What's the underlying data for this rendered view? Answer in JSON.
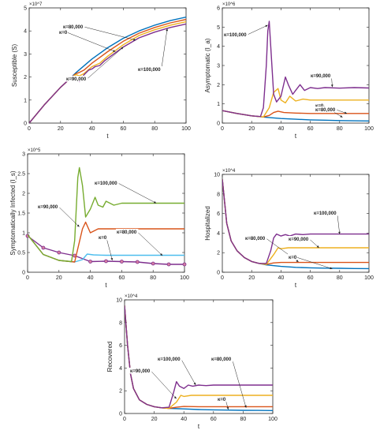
{
  "colors": {
    "kappa0": "#0072BD",
    "kappa80": "#D95319",
    "kappa90": "#EDB120",
    "kappa100": "#7E2F8E",
    "kappa100_c": "#77AC30",
    "k0_c": "#7E2F8E",
    "k80_c": "#4DBEEE",
    "k90_c": "#D95319"
  },
  "chart_data": [
    {
      "type": "line",
      "xlabel": "t",
      "ylabel": "Susceptible (S)",
      "exponent": "×10^7",
      "xlim": [
        0,
        100
      ],
      "ylim": [
        0,
        5
      ],
      "xticks": [
        0,
        20,
        40,
        60,
        80,
        100
      ],
      "yticks": [
        0,
        1,
        2,
        3,
        4,
        5
      ],
      "series": [
        {
          "name": "κ=0",
          "color": "#0072BD",
          "x": [
            0,
            10,
            20,
            30,
            40,
            50,
            60,
            70,
            80,
            90,
            100
          ],
          "y": [
            0,
            0.82,
            1.55,
            2.2,
            2.78,
            3.27,
            3.68,
            4.0,
            4.25,
            4.45,
            4.6
          ]
        },
        {
          "name": "κ=80,000",
          "color": "#D95319",
          "x": [
            0,
            10,
            20,
            28,
            30,
            32,
            35,
            40,
            50,
            60,
            70,
            80,
            90,
            100
          ],
          "y": [
            0,
            0.82,
            1.55,
            2.05,
            2.15,
            2.2,
            2.3,
            2.6,
            3.1,
            3.55,
            3.9,
            4.15,
            4.35,
            4.5
          ]
        },
        {
          "name": "κ=90,000",
          "color": "#EDB120",
          "x": [
            0,
            10,
            20,
            28,
            30,
            32,
            35,
            40,
            45,
            50,
            60,
            70,
            80,
            90,
            100
          ],
          "y": [
            0,
            0.82,
            1.55,
            2.05,
            2.1,
            2.05,
            2.15,
            2.45,
            2.6,
            2.9,
            3.4,
            3.8,
            4.05,
            4.25,
            4.4
          ]
        },
        {
          "name": "κ=100,000",
          "color": "#7E2F8E",
          "x": [
            0,
            10,
            20,
            28,
            30,
            31,
            32,
            33,
            35,
            38,
            40,
            42,
            45,
            48,
            50,
            60,
            70,
            80,
            90,
            100
          ],
          "y": [
            0,
            0.82,
            1.55,
            2.05,
            2.0,
            1.9,
            1.8,
            1.85,
            2.1,
            2.3,
            2.35,
            2.45,
            2.5,
            2.7,
            2.8,
            3.3,
            3.7,
            3.95,
            4.15,
            4.3
          ]
        }
      ],
      "annotations": [
        {
          "text": "κ=80,000"
        },
        {
          "text": "κ=0"
        },
        {
          "text": "κ=90,000"
        },
        {
          "text": "κ=100,000"
        }
      ]
    },
    {
      "type": "line",
      "xlabel": "t",
      "ylabel": "Asymptomatic (I_a)",
      "exponent": "×10^6",
      "xlim": [
        0,
        100
      ],
      "ylim": [
        0,
        6
      ],
      "xticks": [
        0,
        20,
        40,
        60,
        80,
        100
      ],
      "yticks": [
        0,
        1,
        2,
        3,
        4,
        5,
        6
      ],
      "series": [
        {
          "name": "κ=0",
          "color": "#0072BD",
          "x": [
            0,
            10,
            20,
            30,
            40,
            50,
            60,
            70,
            80,
            90,
            100
          ],
          "y": [
            0.65,
            0.5,
            0.38,
            0.3,
            0.24,
            0.2,
            0.17,
            0.15,
            0.13,
            0.12,
            0.11
          ]
        },
        {
          "name": "κ=80,000",
          "color": "#D95319",
          "x": [
            0,
            10,
            20,
            28,
            32,
            35,
            38,
            42,
            50,
            60,
            70,
            80,
            90,
            100
          ],
          "y": [
            0.65,
            0.5,
            0.38,
            0.32,
            0.4,
            0.55,
            0.62,
            0.55,
            0.52,
            0.5,
            0.5,
            0.5,
            0.5,
            0.5
          ]
        },
        {
          "name": "κ=90,000",
          "color": "#EDB120",
          "x": [
            0,
            10,
            20,
            28,
            32,
            35,
            38,
            40,
            43,
            46,
            50,
            55,
            60,
            65,
            70,
            80,
            90,
            100
          ],
          "y": [
            0.65,
            0.5,
            0.38,
            0.32,
            0.8,
            1.6,
            1.8,
            1.2,
            1.05,
            1.4,
            1.15,
            1.25,
            1.2,
            1.2,
            1.2,
            1.2,
            1.2,
            1.2
          ]
        },
        {
          "name": "κ=100,000",
          "color": "#7E2F8E",
          "x": [
            0,
            10,
            20,
            26,
            28,
            30,
            31,
            32,
            33,
            35,
            37,
            40,
            43,
            45,
            48,
            50,
            53,
            56,
            60,
            65,
            70,
            80,
            90,
            100
          ],
          "y": [
            0.65,
            0.5,
            0.38,
            0.34,
            0.8,
            3.0,
            4.8,
            5.3,
            4.0,
            1.5,
            1.1,
            1.4,
            2.4,
            2.0,
            1.5,
            1.7,
            2.0,
            1.7,
            1.85,
            1.8,
            1.85,
            1.82,
            1.85,
            1.83
          ]
        }
      ],
      "annotations": [
        {
          "text": "κ=100,000"
        },
        {
          "text": "κ=90,000"
        },
        {
          "text": "κ=0"
        },
        {
          "text": "κ=80,000"
        }
      ]
    },
    {
      "type": "line",
      "xlabel": "t",
      "ylabel": "Symptomatically  Infected (I_s)",
      "exponent": "×10^5",
      "xlim": [
        0,
        100
      ],
      "ylim": [
        0,
        3
      ],
      "xticks": [
        0,
        20,
        40,
        60,
        80,
        100
      ],
      "yticks": [
        0,
        0.5,
        1,
        1.5,
        2,
        2.5,
        3
      ],
      "series": [
        {
          "name": "κ=0",
          "color": "#7E2F8E",
          "markers": true,
          "x": [
            0,
            10,
            20,
            30,
            40,
            50,
            60,
            70,
            80,
            90,
            100
          ],
          "y": [
            0.92,
            0.62,
            0.5,
            0.42,
            0.27,
            0.28,
            0.27,
            0.26,
            0.22,
            0.2,
            0.2
          ]
        },
        {
          "name": "κ=80,000",
          "color": "#4DBEEE",
          "x": [
            0,
            10,
            20,
            30,
            35,
            38,
            42,
            50,
            60,
            70,
            80,
            90,
            100
          ],
          "y": [
            0.95,
            0.45,
            0.3,
            0.26,
            0.32,
            0.46,
            0.44,
            0.43,
            0.43,
            0.43,
            0.43,
            0.43,
            0.43
          ]
        },
        {
          "name": "κ=90,000",
          "color": "#D95319",
          "x": [
            0,
            10,
            20,
            30,
            32,
            35,
            37,
            40,
            45,
            50,
            60,
            70,
            80,
            90,
            100
          ],
          "y": [
            0.95,
            0.45,
            0.3,
            0.26,
            0.6,
            1.1,
            1.27,
            1.0,
            1.1,
            1.1,
            1.1,
            1.1,
            1.1,
            1.1,
            1.1
          ]
        },
        {
          "name": "κ=100,000",
          "color": "#77AC30",
          "x": [
            0,
            10,
            20,
            28,
            30,
            32,
            33,
            35,
            37,
            40,
            43,
            45,
            48,
            50,
            55,
            60,
            70,
            80,
            90,
            100
          ],
          "y": [
            0.95,
            0.45,
            0.3,
            0.27,
            0.8,
            2.4,
            2.65,
            2.2,
            1.4,
            1.6,
            1.9,
            1.7,
            1.65,
            1.8,
            1.7,
            1.75,
            1.75,
            1.75,
            1.75,
            1.75
          ]
        }
      ],
      "annotations": [
        {
          "text": "κ=100,000"
        },
        {
          "text": "κ=90,000"
        },
        {
          "text": "κ=0"
        },
        {
          "text": "κ=80,000"
        }
      ]
    },
    {
      "type": "line",
      "xlabel": "t",
      "ylabel": "Hospitalized",
      "exponent": "×10^4",
      "xlim": [
        0,
        100
      ],
      "ylim": [
        0,
        10
      ],
      "xticks": [
        0,
        20,
        40,
        60,
        80,
        100
      ],
      "yticks": [
        0,
        2,
        4,
        6,
        8,
        10
      ],
      "series": [
        {
          "name": "κ=0",
          "color": "#0072BD",
          "x": [
            0,
            3,
            6,
            10,
            15,
            20,
            25,
            30,
            40,
            50,
            60,
            70,
            80,
            90,
            100
          ],
          "y": [
            9.5,
            5.0,
            3.2,
            2.2,
            1.5,
            1.1,
            0.9,
            0.75,
            0.6,
            0.5,
            0.45,
            0.42,
            0.4,
            0.38,
            0.37
          ]
        },
        {
          "name": "κ=80,000",
          "color": "#D95319",
          "x": [
            0,
            3,
            6,
            10,
            15,
            20,
            25,
            30,
            35,
            40,
            50,
            60,
            70,
            80,
            90,
            100
          ],
          "y": [
            9.5,
            5.0,
            3.2,
            2.2,
            1.5,
            1.1,
            0.9,
            0.8,
            0.95,
            1.0,
            1.0,
            1.0,
            1.0,
            1.0,
            1.0,
            1.0
          ]
        },
        {
          "name": "κ=90,000",
          "color": "#EDB120",
          "x": [
            0,
            3,
            6,
            10,
            15,
            20,
            25,
            30,
            35,
            38,
            40,
            45,
            50,
            60,
            70,
            80,
            90,
            100
          ],
          "y": [
            9.5,
            5.0,
            3.2,
            2.2,
            1.5,
            1.1,
            0.9,
            0.8,
            1.8,
            2.5,
            2.4,
            2.5,
            2.5,
            2.5,
            2.5,
            2.5,
            2.5,
            2.5
          ]
        },
        {
          "name": "κ=100,000",
          "color": "#7E2F8E",
          "x": [
            0,
            3,
            6,
            10,
            15,
            20,
            25,
            30,
            33,
            35,
            37,
            40,
            43,
            46,
            50,
            55,
            60,
            70,
            80,
            90,
            100
          ],
          "y": [
            9.5,
            5.0,
            3.2,
            2.2,
            1.5,
            1.1,
            0.9,
            0.9,
            2.2,
            3.5,
            3.9,
            3.7,
            3.85,
            3.7,
            3.9,
            3.85,
            3.9,
            3.9,
            3.9,
            3.9,
            3.9
          ]
        }
      ],
      "annotations": [
        {
          "text": "κ=100,000"
        },
        {
          "text": "κ=80,000"
        },
        {
          "text": "κ=90,000"
        },
        {
          "text": "κ=0"
        }
      ]
    },
    {
      "type": "line",
      "xlabel": "t",
      "ylabel": "Recovered",
      "exponent": "×10^4",
      "xlim": [
        0,
        100
      ],
      "ylim": [
        0,
        10
      ],
      "xticks": [
        0,
        20,
        40,
        60,
        80,
        100
      ],
      "yticks": [
        0,
        2,
        4,
        6,
        8,
        10
      ],
      "series": [
        {
          "name": "κ=0",
          "color": "#0072BD",
          "x": [
            0,
            2,
            4,
            6,
            10,
            15,
            20,
            25,
            30,
            40,
            50,
            60,
            70,
            80,
            90,
            100
          ],
          "y": [
            9.5,
            6.0,
            3.5,
            2.2,
            1.2,
            0.8,
            0.6,
            0.5,
            0.45,
            0.4,
            0.35,
            0.32,
            0.3,
            0.28,
            0.27,
            0.26
          ]
        },
        {
          "name": "κ=80,000",
          "color": "#D95319",
          "x": [
            0,
            2,
            4,
            6,
            10,
            15,
            20,
            25,
            30,
            35,
            40,
            50,
            60,
            70,
            80,
            90,
            100
          ],
          "y": [
            9.5,
            6.0,
            3.5,
            2.2,
            1.2,
            0.8,
            0.6,
            0.5,
            0.45,
            0.55,
            0.62,
            0.6,
            0.6,
            0.6,
            0.6,
            0.6,
            0.6
          ]
        },
        {
          "name": "κ=90,000",
          "color": "#EDB120",
          "x": [
            0,
            2,
            4,
            6,
            10,
            15,
            20,
            25,
            30,
            35,
            38,
            40,
            45,
            50,
            60,
            70,
            80,
            90,
            100
          ],
          "y": [
            9.5,
            6.0,
            3.5,
            2.2,
            1.2,
            0.8,
            0.6,
            0.5,
            0.45,
            1.0,
            1.6,
            1.5,
            1.6,
            1.6,
            1.6,
            1.6,
            1.6,
            1.6,
            1.6
          ]
        },
        {
          "name": "κ=100,000",
          "color": "#7E2F8E",
          "x": [
            0,
            2,
            4,
            6,
            10,
            15,
            20,
            25,
            30,
            33,
            35,
            37,
            40,
            43,
            46,
            50,
            55,
            60,
            70,
            80,
            90,
            100
          ],
          "y": [
            9.5,
            6.0,
            3.5,
            2.2,
            1.2,
            0.8,
            0.6,
            0.5,
            0.55,
            1.8,
            2.8,
            2.4,
            2.2,
            2.5,
            2.4,
            2.5,
            2.45,
            2.5,
            2.5,
            2.5,
            2.5,
            2.5
          ]
        }
      ],
      "annotations": [
        {
          "text": "κ=100,000"
        },
        {
          "text": "κ=80,000"
        },
        {
          "text": "κ=90,000"
        },
        {
          "text": "κ=0"
        }
      ]
    }
  ]
}
